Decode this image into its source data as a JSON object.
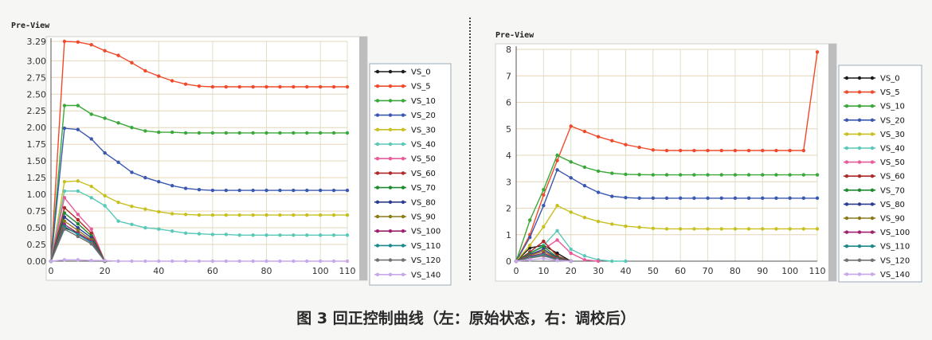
{
  "caption": "图 3 回正控制曲线（左：原始状态，右：调校后）",
  "colors": {
    "VS_0": "#1a1a1a",
    "VS_5": "#f04a2a",
    "VS_10": "#3aa83a",
    "VS_20": "#3a58b0",
    "VS_30": "#c8c020",
    "VS_40": "#58c8b8",
    "VS_50": "#e85a9a",
    "VS_60": "#b02828",
    "VS_70": "#1f8a2f",
    "VS_80": "#2c3c90",
    "VS_90": "#8a7a1a",
    "VS_100": "#a02070",
    "VS_110": "#1a8a8a",
    "VS_120": "#707070",
    "VS_140": "#c8a8e8"
  },
  "chart_data": [
    {
      "type": "line",
      "title": "Pre-View",
      "xlabel": "",
      "ylabel": "",
      "xlim": [
        0,
        110
      ],
      "ylim": [
        0,
        3.29
      ],
      "xticks": [
        "0",
        "20",
        "40",
        "60",
        "80",
        "100",
        "110"
      ],
      "yticks": [
        "0.00",
        "0.25",
        "0.50",
        "0.75",
        "1.00",
        "1.25",
        "1.50",
        "1.75",
        "2.00",
        "2.25",
        "2.50",
        "2.75",
        "3.00",
        "3.29"
      ],
      "grid": true,
      "legend": "right",
      "series": [
        {
          "name": "VS_0",
          "x": [
            0,
            5,
            10,
            15,
            20
          ],
          "y": [
            0,
            0.5,
            0.42,
            0.3,
            0
          ]
        },
        {
          "name": "VS_5",
          "x": [
            0,
            5,
            10,
            15,
            20,
            25,
            30,
            35,
            40,
            45,
            50,
            55,
            60,
            65,
            70,
            75,
            80,
            85,
            90,
            95,
            100,
            105,
            110
          ],
          "y": [
            0,
            3.29,
            3.28,
            3.24,
            3.15,
            3.08,
            2.97,
            2.85,
            2.77,
            2.7,
            2.65,
            2.62,
            2.61,
            2.61,
            2.61,
            2.61,
            2.61,
            2.61,
            2.61,
            2.61,
            2.61,
            2.61,
            2.61
          ]
        },
        {
          "name": "VS_10",
          "x": [
            0,
            5,
            10,
            15,
            20,
            25,
            30,
            35,
            40,
            45,
            50,
            55,
            60,
            65,
            70,
            75,
            80,
            85,
            90,
            95,
            100,
            105,
            110
          ],
          "y": [
            0,
            2.33,
            2.33,
            2.2,
            2.14,
            2.07,
            2.0,
            1.95,
            1.93,
            1.93,
            1.92,
            1.92,
            1.92,
            1.92,
            1.92,
            1.92,
            1.92,
            1.92,
            1.92,
            1.92,
            1.92,
            1.92,
            1.92
          ]
        },
        {
          "name": "VS_20",
          "x": [
            0,
            5,
            10,
            15,
            20,
            25,
            30,
            35,
            40,
            45,
            50,
            55,
            60,
            65,
            70,
            75,
            80,
            85,
            90,
            95,
            100,
            105,
            110
          ],
          "y": [
            0,
            1.99,
            1.97,
            1.83,
            1.62,
            1.48,
            1.33,
            1.25,
            1.19,
            1.13,
            1.09,
            1.07,
            1.06,
            1.06,
            1.06,
            1.06,
            1.06,
            1.06,
            1.06,
            1.06,
            1.06,
            1.06,
            1.06
          ]
        },
        {
          "name": "VS_30",
          "x": [
            0,
            5,
            10,
            15,
            20,
            25,
            30,
            35,
            40,
            45,
            50,
            55,
            60,
            65,
            70,
            75,
            80,
            85,
            90,
            95,
            100,
            105,
            110
          ],
          "y": [
            0,
            1.19,
            1.2,
            1.12,
            0.98,
            0.88,
            0.82,
            0.78,
            0.74,
            0.71,
            0.7,
            0.69,
            0.69,
            0.69,
            0.69,
            0.69,
            0.69,
            0.69,
            0.69,
            0.69,
            0.69,
            0.69,
            0.69
          ]
        },
        {
          "name": "VS_40",
          "x": [
            0,
            5,
            10,
            15,
            20,
            25,
            30,
            35,
            40,
            45,
            50,
            55,
            60,
            65,
            70,
            75,
            80,
            85,
            90,
            95,
            100,
            105,
            110
          ],
          "y": [
            0,
            1.05,
            1.05,
            0.95,
            0.83,
            0.6,
            0.55,
            0.5,
            0.48,
            0.45,
            0.42,
            0.41,
            0.4,
            0.4,
            0.39,
            0.39,
            0.39,
            0.39,
            0.39,
            0.39,
            0.39,
            0.39,
            0.39
          ]
        },
        {
          "name": "VS_50",
          "x": [
            0,
            5,
            10,
            15,
            20
          ],
          "y": [
            0,
            0.95,
            0.7,
            0.48,
            0
          ]
        },
        {
          "name": "VS_60",
          "x": [
            0,
            5,
            10,
            15,
            20
          ],
          "y": [
            0,
            0.8,
            0.62,
            0.42,
            0
          ]
        },
        {
          "name": "VS_70",
          "x": [
            0,
            5,
            10,
            15,
            20
          ],
          "y": [
            0,
            0.72,
            0.56,
            0.38,
            0
          ]
        },
        {
          "name": "VS_80",
          "x": [
            0,
            5,
            10,
            15,
            20
          ],
          "y": [
            0,
            0.66,
            0.5,
            0.35,
            0
          ]
        },
        {
          "name": "VS_90",
          "x": [
            0,
            5,
            10,
            15,
            20
          ],
          "y": [
            0,
            0.6,
            0.46,
            0.32,
            0
          ]
        },
        {
          "name": "VS_100",
          "x": [
            0,
            5,
            10,
            15,
            20
          ],
          "y": [
            0,
            0.55,
            0.42,
            0.3,
            0
          ]
        },
        {
          "name": "VS_110",
          "x": [
            0,
            5,
            10,
            15,
            20
          ],
          "y": [
            0,
            0.52,
            0.4,
            0.28,
            0
          ]
        },
        {
          "name": "VS_120",
          "x": [
            0,
            5,
            10,
            15,
            20
          ],
          "y": [
            0,
            0.48,
            0.37,
            0.26,
            0
          ]
        },
        {
          "name": "VS_140",
          "x": [
            0,
            5,
            10,
            15,
            20,
            25,
            30,
            35,
            40,
            45,
            50,
            55,
            60,
            65,
            70,
            75,
            80,
            85,
            90,
            95,
            100,
            105,
            110
          ],
          "y": [
            0,
            0.02,
            0.02,
            0.01,
            0.01,
            0,
            0,
            0,
            0,
            0,
            0,
            0,
            0,
            0,
            0,
            0,
            0,
            0,
            0,
            0,
            0,
            0,
            0
          ]
        }
      ]
    },
    {
      "type": "line",
      "title": "Pre-View",
      "xlabel": "",
      "ylabel": "",
      "xlim": [
        0,
        110
      ],
      "ylim": [
        0,
        8
      ],
      "xticks": [
        "0",
        "10",
        "20",
        "30",
        "40",
        "50",
        "60",
        "70",
        "80",
        "90",
        "100",
        "110"
      ],
      "yticks": [
        "0",
        "1",
        "2",
        "3",
        "4",
        "5",
        "6",
        "7",
        "8"
      ],
      "grid": true,
      "legend": "right",
      "series": [
        {
          "name": "VS_0",
          "x": [
            0,
            5,
            10,
            15,
            20
          ],
          "y": [
            0,
            0.5,
            0.6,
            0.3,
            0
          ]
        },
        {
          "name": "VS_5",
          "x": [
            0,
            5,
            10,
            15,
            20,
            25,
            30,
            35,
            40,
            45,
            50,
            55,
            60,
            65,
            70,
            75,
            80,
            85,
            90,
            95,
            100,
            105,
            110
          ],
          "y": [
            0,
            1.0,
            2.5,
            3.8,
            5.1,
            4.9,
            4.7,
            4.55,
            4.4,
            4.3,
            4.2,
            4.18,
            4.18,
            4.18,
            4.18,
            4.18,
            4.18,
            4.18,
            4.18,
            4.18,
            4.18,
            4.18,
            7.9
          ]
        },
        {
          "name": "VS_10",
          "x": [
            0,
            5,
            10,
            15,
            20,
            25,
            30,
            35,
            40,
            45,
            50,
            55,
            60,
            65,
            70,
            75,
            80,
            85,
            90,
            95,
            100,
            105,
            110
          ],
          "y": [
            0,
            1.55,
            2.7,
            4.0,
            3.75,
            3.55,
            3.4,
            3.32,
            3.28,
            3.27,
            3.26,
            3.26,
            3.26,
            3.26,
            3.26,
            3.26,
            3.26,
            3.26,
            3.26,
            3.26,
            3.26,
            3.26,
            3.26
          ]
        },
        {
          "name": "VS_20",
          "x": [
            0,
            5,
            10,
            15,
            20,
            25,
            30,
            35,
            40,
            45,
            50,
            55,
            60,
            65,
            70,
            75,
            80,
            85,
            90,
            95,
            100,
            105,
            110
          ],
          "y": [
            0,
            0.9,
            2.1,
            3.45,
            3.15,
            2.85,
            2.6,
            2.45,
            2.4,
            2.38,
            2.38,
            2.38,
            2.38,
            2.38,
            2.38,
            2.38,
            2.38,
            2.38,
            2.38,
            2.38,
            2.38,
            2.38,
            2.38
          ]
        },
        {
          "name": "VS_30",
          "x": [
            0,
            5,
            10,
            15,
            20,
            25,
            30,
            35,
            40,
            45,
            50,
            55,
            60,
            65,
            70,
            75,
            80,
            85,
            90,
            95,
            100,
            105,
            110
          ],
          "y": [
            0,
            0.6,
            1.3,
            2.1,
            1.85,
            1.65,
            1.5,
            1.4,
            1.32,
            1.28,
            1.24,
            1.22,
            1.22,
            1.22,
            1.22,
            1.22,
            1.22,
            1.22,
            1.22,
            1.22,
            1.22,
            1.22,
            1.22
          ]
        },
        {
          "name": "VS_40",
          "x": [
            0,
            5,
            10,
            15,
            20,
            25,
            30,
            35,
            40
          ],
          "y": [
            0,
            0.3,
            0.6,
            1.15,
            0.45,
            0.2,
            0.05,
            0,
            0
          ]
        },
        {
          "name": "VS_50",
          "x": [
            0,
            5,
            10,
            15,
            20,
            25,
            30
          ],
          "y": [
            0,
            0.2,
            0.45,
            0.8,
            0.3,
            0.05,
            0
          ]
        },
        {
          "name": "VS_60",
          "x": [
            0,
            5,
            10,
            15,
            20
          ],
          "y": [
            0,
            0.35,
            0.75,
            0.2,
            0
          ]
        },
        {
          "name": "VS_70",
          "x": [
            0,
            5,
            10,
            15,
            20
          ],
          "y": [
            0,
            0.3,
            0.55,
            0.15,
            0
          ]
        },
        {
          "name": "VS_80",
          "x": [
            0,
            5,
            10,
            15,
            20
          ],
          "y": [
            0,
            0.25,
            0.45,
            0.12,
            0
          ]
        },
        {
          "name": "VS_90",
          "x": [
            0,
            5,
            10,
            15,
            20
          ],
          "y": [
            0,
            0.22,
            0.38,
            0.1,
            0
          ]
        },
        {
          "name": "VS_100",
          "x": [
            0,
            5,
            10,
            15,
            20
          ],
          "y": [
            0,
            0.18,
            0.3,
            0.08,
            0
          ]
        },
        {
          "name": "VS_110",
          "x": [
            0,
            5,
            10,
            15,
            20
          ],
          "y": [
            0,
            0.15,
            0.25,
            0.06,
            0
          ]
        },
        {
          "name": "VS_120",
          "x": [
            0,
            5,
            10,
            15,
            20
          ],
          "y": [
            0,
            0.12,
            0.2,
            0.05,
            0
          ]
        },
        {
          "name": "VS_140",
          "x": [
            0,
            5,
            10,
            15,
            20
          ],
          "y": [
            0,
            0.05,
            0.1,
            0.02,
            0
          ]
        }
      ]
    }
  ]
}
